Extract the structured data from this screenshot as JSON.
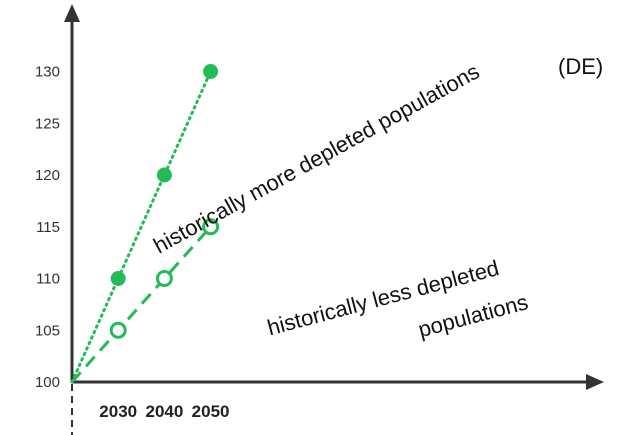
{
  "chart_data": {
    "type": "line",
    "x": [
      2020,
      2030,
      2040,
      2050
    ],
    "xticks": [
      {
        "value": 2030,
        "label": "2030"
      },
      {
        "value": 2040,
        "label": "2040"
      },
      {
        "value": 2050,
        "label": "2050"
      }
    ],
    "yticks": [
      "100",
      "105",
      "110",
      "115",
      "120",
      "125",
      "130"
    ],
    "ylim": [
      100,
      130
    ],
    "series": [
      {
        "id": "more",
        "values": [
          100,
          110,
          120,
          130
        ],
        "style": "dotted",
        "marker": "filled",
        "color": "#22bb55"
      },
      {
        "id": "less",
        "values": [
          100,
          105,
          110,
          115
        ],
        "style": "dashed",
        "marker": "hollow",
        "color": "#22bb55"
      }
    ],
    "annotations": {
      "more": "historically more depleted populations",
      "less_line1": "historically less depleted",
      "less_line2": "populations",
      "endpoint": "(DE)"
    },
    "grid": false,
    "legend": "none"
  }
}
